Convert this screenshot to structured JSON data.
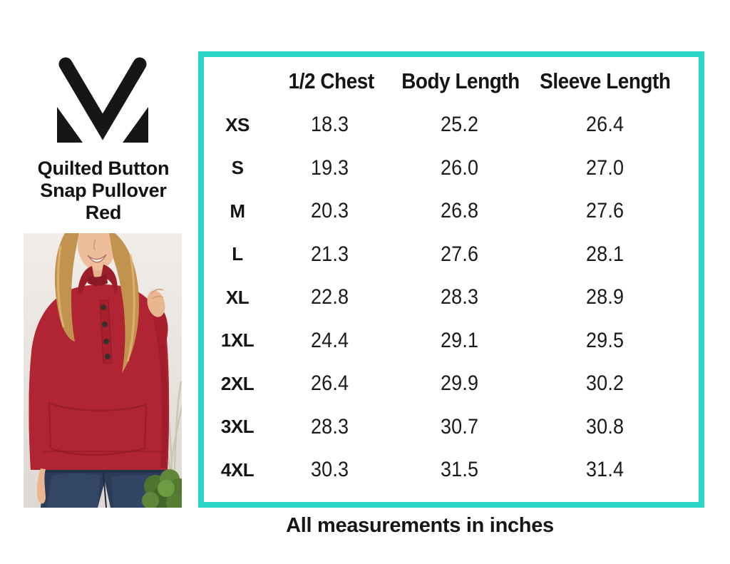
{
  "page": {
    "background_color": "#ffffff"
  },
  "brand": {
    "logo_icon": "m-monogram",
    "logo_color": "#161616",
    "product_title_lines": [
      "Quilted Button",
      "Snap Pullover",
      "Red"
    ]
  },
  "photo": {
    "alt": "Smiling model with long blonde wavy hair wearing the red quilted button snap pullover with dark snap buttons and blue jeans, light wall with a green bush and dried grasses behind"
  },
  "chart_data": {
    "type": "table",
    "columns": [
      "1/2 Chest",
      "Body Length",
      "Sleeve Length"
    ],
    "rows": [
      {
        "size": "XS",
        "values": [
          "18.3",
          "25.2",
          "26.4"
        ]
      },
      {
        "size": "S",
        "values": [
          "19.3",
          "26.0",
          "27.0"
        ]
      },
      {
        "size": "M",
        "values": [
          "20.3",
          "26.8",
          "27.6"
        ]
      },
      {
        "size": "L",
        "values": [
          "21.3",
          "27.6",
          "28.1"
        ]
      },
      {
        "size": "XL",
        "values": [
          "22.8",
          "28.3",
          "28.9"
        ]
      },
      {
        "size": "1XL",
        "values": [
          "24.4",
          "29.1",
          "29.5"
        ]
      },
      {
        "size": "2XL",
        "values": [
          "26.4",
          "29.9",
          "30.2"
        ]
      },
      {
        "size": "3XL",
        "values": [
          "28.3",
          "30.7",
          "30.8"
        ]
      },
      {
        "size": "4XL",
        "values": [
          "30.3",
          "31.5",
          "31.4"
        ]
      }
    ],
    "footnote": "All measurements in inches",
    "border_color": "#2ad5c3",
    "text_color": "#151515"
  }
}
